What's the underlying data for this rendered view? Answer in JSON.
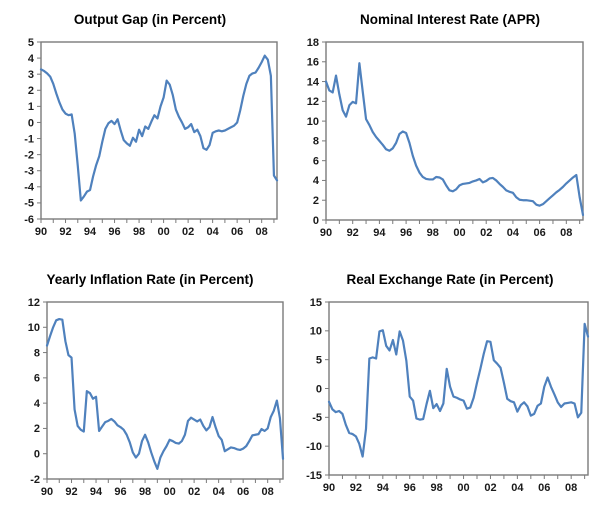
{
  "page": {
    "background": "#ffffff",
    "layout": "2x2 line chart panel",
    "frequency": "quarterly"
  },
  "chart_data": [
    {
      "id": "output-gap",
      "type": "line",
      "title": "Output Gap (in Percent)",
      "x_start": 1990,
      "x_step": 0.25,
      "values": [
        3.3,
        3.2,
        3.05,
        2.85,
        2.4,
        1.8,
        1.25,
        0.8,
        0.55,
        0.45,
        0.5,
        -0.7,
        -2.7,
        -4.85,
        -4.6,
        -4.3,
        -4.2,
        -3.35,
        -2.65,
        -2.1,
        -1.2,
        -0.4,
        -0.05,
        0.1,
        -0.1,
        0.2,
        -0.5,
        -1.1,
        -1.3,
        -1.45,
        -0.95,
        -1.2,
        -0.45,
        -0.85,
        -0.25,
        -0.4,
        0.05,
        0.45,
        0.25,
        1.0,
        1.55,
        2.6,
        2.35,
        1.7,
        0.8,
        0.35,
        0.0,
        -0.4,
        -0.3,
        -0.1,
        -0.6,
        -0.45,
        -0.85,
        -1.6,
        -1.7,
        -1.4,
        -0.65,
        -0.55,
        -0.5,
        -0.55,
        -0.5,
        -0.4,
        -0.3,
        -0.2,
        0.0,
        0.75,
        1.65,
        2.4,
        2.9,
        3.05,
        3.1,
        3.4,
        3.75,
        4.15,
        3.9,
        2.9,
        -3.3,
        -3.6
      ],
      "ylim": [
        -6,
        5
      ],
      "ytick_step": 1,
      "ytick_labels": [
        "5",
        "4",
        "3",
        "2",
        "1",
        "0",
        "-1",
        "-2",
        "-3",
        "-4",
        "-5",
        "-6"
      ],
      "xtick_labels": [
        "90",
        "92",
        "94",
        "96",
        "98",
        "00",
        "02",
        "04",
        "06",
        "08"
      ],
      "grid": false,
      "legend": "none",
      "line_color": "#4f81bd",
      "frame_color": "#7a7a7a",
      "text_color": "#1a1a1a"
    },
    {
      "id": "nominal-interest-rate",
      "type": "line",
      "title": "Nominal Interest Rate (APR)",
      "x_start": 1990,
      "x_step": 0.25,
      "values": [
        14.0,
        13.1,
        12.9,
        14.6,
        12.7,
        11.1,
        10.45,
        11.6,
        11.95,
        11.8,
        15.85,
        13.0,
        10.2,
        9.6,
        8.9,
        8.4,
        8.0,
        7.6,
        7.15,
        7.0,
        7.25,
        7.8,
        8.7,
        8.95,
        8.8,
        7.8,
        6.5,
        5.5,
        4.8,
        4.35,
        4.15,
        4.1,
        4.1,
        4.35,
        4.3,
        4.1,
        3.5,
        3.0,
        2.9,
        3.1,
        3.5,
        3.65,
        3.7,
        3.75,
        3.9,
        4.0,
        4.15,
        3.8,
        3.95,
        4.2,
        4.25,
        4.0,
        3.65,
        3.35,
        3.0,
        2.85,
        2.75,
        2.3,
        2.05,
        2.0,
        2.0,
        1.95,
        1.9,
        1.55,
        1.45,
        1.6,
        1.9,
        2.2,
        2.5,
        2.8,
        3.05,
        3.35,
        3.7,
        4.0,
        4.3,
        4.55,
        2.3,
        0.5
      ],
      "ylim": [
        0,
        18
      ],
      "ytick_step": 2,
      "ytick_labels": [
        "18",
        "16",
        "14",
        "12",
        "10",
        "8",
        "6",
        "4",
        "2",
        "0"
      ],
      "xtick_labels": [
        "90",
        "92",
        "94",
        "96",
        "98",
        "00",
        "02",
        "04",
        "06",
        "08"
      ],
      "grid": false,
      "legend": "none",
      "line_color": "#4f81bd",
      "frame_color": "#7a7a7a",
      "text_color": "#1a1a1a"
    },
    {
      "id": "yearly-inflation-rate",
      "type": "line",
      "title": "Yearly Inflation Rate (in Percent)",
      "x_start": 1990,
      "x_step": 0.25,
      "values": [
        8.55,
        9.3,
        10.0,
        10.55,
        10.65,
        10.6,
        8.9,
        7.8,
        7.6,
        3.5,
        2.2,
        1.9,
        1.75,
        4.95,
        4.8,
        4.35,
        4.5,
        1.8,
        2.15,
        2.5,
        2.6,
        2.75,
        2.55,
        2.25,
        2.1,
        1.9,
        1.5,
        0.9,
        0.1,
        -0.3,
        0.0,
        1.0,
        1.5,
        0.9,
        0.1,
        -0.6,
        -1.2,
        -0.3,
        0.2,
        0.6,
        1.1,
        1.0,
        0.85,
        0.8,
        1.0,
        1.5,
        2.6,
        2.85,
        2.7,
        2.55,
        2.7,
        2.2,
        1.85,
        2.1,
        2.9,
        2.1,
        1.4,
        1.1,
        0.2,
        0.35,
        0.5,
        0.45,
        0.35,
        0.3,
        0.4,
        0.6,
        1.0,
        1.45,
        1.5,
        1.55,
        1.95,
        1.8,
        2.0,
        2.9,
        3.4,
        4.2,
        2.8,
        -0.4
      ],
      "ylim": [
        -2,
        12
      ],
      "ytick_step": 2,
      "ytick_labels": [
        "12",
        "10",
        "8",
        "6",
        "4",
        "2",
        "0",
        "-2"
      ],
      "xtick_labels": [
        "90",
        "92",
        "94",
        "96",
        "98",
        "00",
        "02",
        "04",
        "06",
        "08"
      ],
      "grid": false,
      "legend": "none",
      "line_color": "#4f81bd",
      "frame_color": "#7a7a7a",
      "text_color": "#1a1a1a"
    },
    {
      "id": "real-exchange-rate",
      "type": "line",
      "title": "Real Exchange Rate (in Percent)",
      "x_start": 1990,
      "x_step": 0.25,
      "values": [
        -2.3,
        -3.6,
        -4.1,
        -3.9,
        -4.4,
        -6.3,
        -7.7,
        -7.9,
        -8.3,
        -9.6,
        -11.8,
        -7.0,
        5.2,
        5.4,
        5.2,
        9.9,
        10.1,
        7.4,
        6.6,
        8.4,
        5.9,
        9.9,
        8.3,
        4.8,
        -1.4,
        -2.1,
        -5.2,
        -5.4,
        -5.3,
        -2.7,
        -0.4,
        -3.4,
        -2.7,
        -3.9,
        -2.6,
        3.4,
        0.3,
        -1.4,
        -1.6,
        -1.9,
        -2.1,
        -3.5,
        -3.3,
        -1.6,
        1.0,
        3.4,
        6.0,
        8.2,
        8.1,
        4.9,
        4.3,
        3.6,
        1.0,
        -1.8,
        -2.2,
        -2.4,
        -4.0,
        -2.9,
        -2.4,
        -3.1,
        -4.7,
        -4.4,
        -3.0,
        -2.6,
        0.3,
        1.9,
        0.3,
        -1.0,
        -2.4,
        -3.2,
        -2.6,
        -2.5,
        -2.4,
        -2.6,
        -5.0,
        -4.2,
        11.2,
        9.0
      ],
      "ylim": [
        -15,
        15
      ],
      "ytick_step": 5,
      "ytick_labels": [
        "15",
        "10",
        "5",
        "0",
        "-5",
        "-10",
        "-15"
      ],
      "xtick_labels": [
        "90",
        "92",
        "94",
        "96",
        "98",
        "00",
        "02",
        "04",
        "06",
        "08"
      ],
      "grid": false,
      "legend": "none",
      "line_color": "#4f81bd",
      "frame_color": "#7a7a7a",
      "text_color": "#1a1a1a"
    }
  ]
}
